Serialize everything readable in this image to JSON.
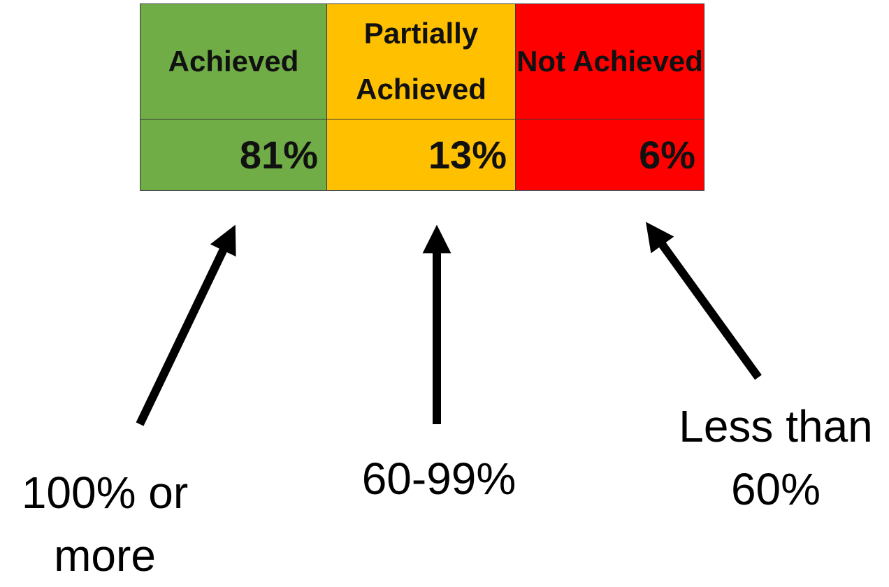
{
  "table": {
    "headers": [
      "Achieved",
      "Partially Achieved",
      "Not Achieved"
    ],
    "rows": [
      [
        "81%",
        "13%",
        "6%"
      ]
    ]
  },
  "annotations": [
    "100% or more",
    "60-99%",
    "Less than 60%"
  ]
}
